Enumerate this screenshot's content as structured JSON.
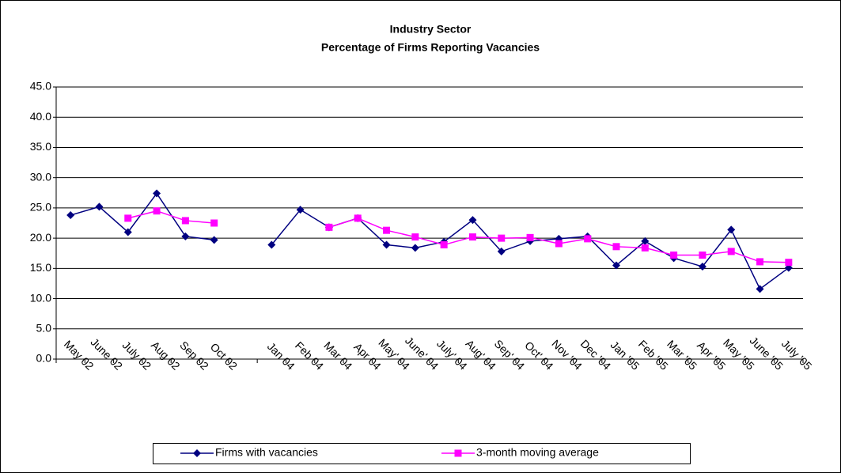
{
  "chart_data": {
    "type": "line",
    "title": [
      "Industry Sector",
      "Percentage of Firms Reporting Vacancies"
    ],
    "categories": [
      "May 02",
      "June 02",
      "July 02",
      "Aug 02",
      "Sep 02",
      "Oct 02",
      null,
      "Jan 04",
      "Feb 04",
      "Mar 04",
      "Apr 04",
      "May' 04",
      "June' 04",
      "July' 04",
      "Aug' 04",
      "Sep' 04",
      "Oct' 04",
      "Nov '04",
      "Dec '04",
      "Jan '05",
      "Feb '05",
      "Mar '05",
      "Apr '05",
      "May '05",
      "June '05",
      "July '05"
    ],
    "series": [
      {
        "name": "Firms with vacancies",
        "color": "#000080",
        "marker": "diamond",
        "values": [
          23.8,
          25.2,
          21.0,
          27.4,
          20.3,
          19.7,
          null,
          18.9,
          24.7,
          21.8,
          23.3,
          18.9,
          18.4,
          19.4,
          23.0,
          17.8,
          19.5,
          19.9,
          20.3,
          15.5,
          19.5,
          16.7,
          15.3,
          21.4,
          11.6,
          15.1
        ]
      },
      {
        "name": "3-month moving average",
        "color": "#ff00ff",
        "marker": "square",
        "values": [
          null,
          null,
          23.3,
          24.5,
          22.9,
          22.5,
          null,
          null,
          null,
          21.8,
          23.3,
          21.3,
          20.2,
          18.9,
          20.2,
          20.0,
          20.1,
          19.1,
          19.9,
          18.6,
          18.4,
          17.2,
          17.2,
          17.8,
          16.1,
          16.0
        ]
      }
    ],
    "ylim": [
      0,
      45
    ],
    "yticks": [
      {
        "value": 0,
        "label": "0.0"
      },
      {
        "value": 5,
        "label": "5.0"
      },
      {
        "value": 10,
        "label": "10.0"
      },
      {
        "value": 15,
        "label": "15.0"
      },
      {
        "value": 20,
        "label": "20.0"
      },
      {
        "value": 25,
        "label": "25.0"
      },
      {
        "value": 30,
        "label": "30.0"
      },
      {
        "value": 35,
        "label": "35.0"
      },
      {
        "value": 40,
        "label": "40.0"
      },
      {
        "value": 45,
        "label": "45.0"
      }
    ],
    "grid": true,
    "legend": "bottom"
  }
}
